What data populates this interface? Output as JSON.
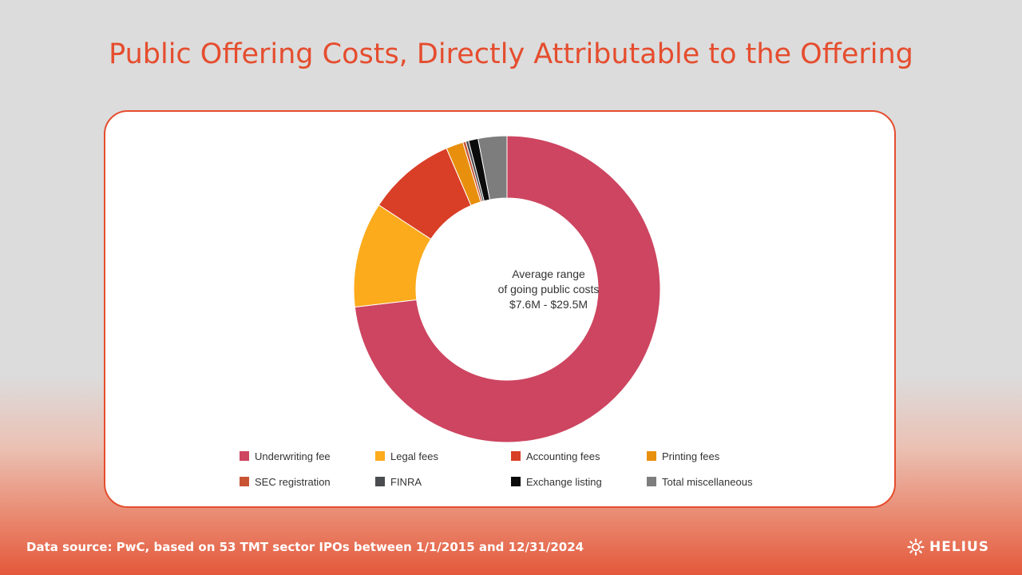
{
  "title": "Public Offering Costs, Directly Attributable to the Offering",
  "footer": {
    "source": "Data source: PwC, based on 53 TMT sector IPOs between 1/1/2015 and 12/31/2024",
    "logo_text": "HELIUS"
  },
  "chart_data": {
    "type": "pie",
    "title": "Public Offering Costs, Directly Attributable to the Offering",
    "center_label": [
      "Average range",
      "of going public costs",
      "$7.6M - $29.5M"
    ],
    "legend_position": "bottom",
    "slices": [
      {
        "name": "Underwriting fee",
        "value": 72.4,
        "color": "#cd4560"
      },
      {
        "name": "Legal fees",
        "value": 11.0,
        "color": "#fbab1c"
      },
      {
        "name": "Accounting fees",
        "value": 9.2,
        "color": "#d93e27"
      },
      {
        "name": "Printing fees",
        "value": 1.8,
        "color": "#e8900e"
      },
      {
        "name": "SEC registration",
        "value": 0.3,
        "color": "#c85434"
      },
      {
        "name": "FINRA",
        "value": 0.3,
        "color": "#4b4c50"
      },
      {
        "name": "Exchange listing",
        "value": 1.0,
        "color": "#0b0b0b"
      },
      {
        "name": "Total miscellaneous",
        "value": 3.0,
        "color": "#7d7d7d"
      }
    ]
  }
}
